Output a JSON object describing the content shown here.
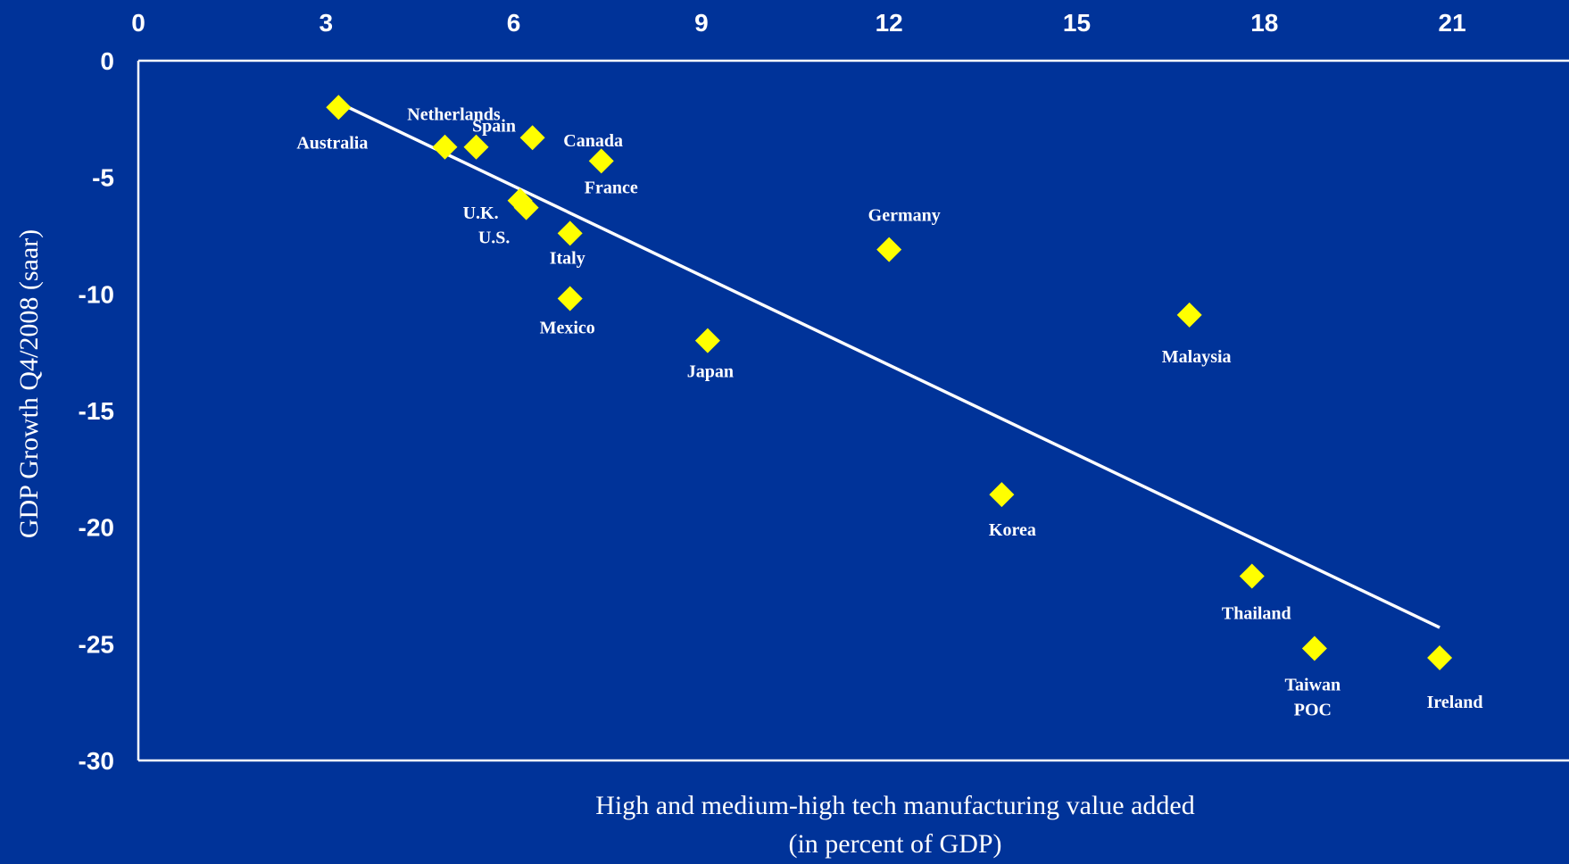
{
  "colors": {
    "background": "#003399",
    "axis": "#ffffff",
    "marker": "#ffff00",
    "trendline": "#ffffff",
    "text": "#ffffff"
  },
  "chart_data": {
    "type": "scatter",
    "title": "",
    "xlabel_lines": [
      "High and medium-high tech manufacturing value added",
      "(in percent of GDP)"
    ],
    "ylabel": "GDP Growth Q4/2008 (saar)",
    "xlim": [
      0,
      22.5
    ],
    "ylim": [
      -30,
      0
    ],
    "x_ticks": [
      0,
      3,
      6,
      9,
      12,
      15,
      18,
      21
    ],
    "y_ticks": [
      0,
      -5,
      -10,
      -15,
      -20,
      -25,
      -30
    ],
    "x_axis_position": "top",
    "grid": false,
    "legend": "none",
    "marker": "diamond",
    "points": [
      {
        "label": [
          "Australia"
        ],
        "x": 3.2,
        "y": -2.0
      },
      {
        "label": [
          "Netherlands"
        ],
        "x": 4.9,
        "y": -3.7
      },
      {
        "label": [
          "Spain"
        ],
        "x": 5.4,
        "y": -3.7
      },
      {
        "label": [
          "Canada"
        ],
        "x": 6.3,
        "y": -3.3
      },
      {
        "label": [
          "France"
        ],
        "x": 7.4,
        "y": -4.3
      },
      {
        "label": [
          "U.K."
        ],
        "x": 6.1,
        "y": -6.0
      },
      {
        "label": [
          "U.S."
        ],
        "x": 6.2,
        "y": -6.3
      },
      {
        "label": [
          "Italy"
        ],
        "x": 6.9,
        "y": -7.4
      },
      {
        "label": [
          "Mexico"
        ],
        "x": 6.9,
        "y": -10.2
      },
      {
        "label": [
          "Japan"
        ],
        "x": 9.1,
        "y": -12.0
      },
      {
        "label": [
          "Germany"
        ],
        "x": 12.0,
        "y": -8.1
      },
      {
        "label": [
          "Malaysia"
        ],
        "x": 16.8,
        "y": -10.9
      },
      {
        "label": [
          "Korea"
        ],
        "x": 13.8,
        "y": -18.6
      },
      {
        "label": [
          "Thailand"
        ],
        "x": 17.8,
        "y": -22.1
      },
      {
        "label": [
          "Taiwan",
          "POC"
        ],
        "x": 18.8,
        "y": -25.2
      },
      {
        "label": [
          "Ireland"
        ],
        "x": 20.8,
        "y": -25.6
      }
    ],
    "trendline": {
      "x": [
        3.2,
        20.8
      ],
      "y": [
        -1.8,
        -24.3
      ]
    }
  }
}
